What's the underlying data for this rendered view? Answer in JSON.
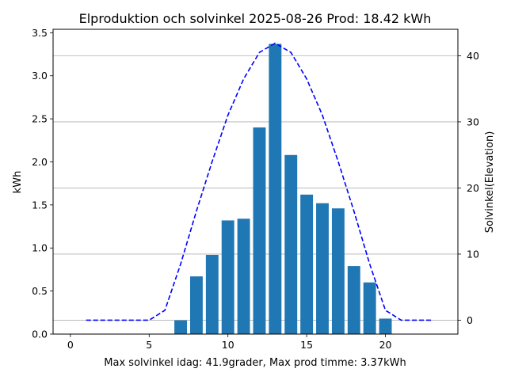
{
  "chart_data": {
    "type": "bar",
    "title": "Elproduktion och solvinkel 2025-08-26 Prod: 18.42 kWh",
    "xlabel": "Max solvinkel idag: 41.9grader, Max prod timme: 3.37kWh",
    "ylabel": "kWh",
    "y2label": "Solvinkel(Elevation)",
    "xlim": [
      -1.1,
      24.6
    ],
    "ylim": [
      0,
      3.54
    ],
    "y2lim": [
      -2.1,
      44.0
    ],
    "xticks": [
      "0",
      "5",
      "10",
      "15",
      "20"
    ],
    "yticks": [
      "0.0",
      "0.5",
      "1.0",
      "1.5",
      "2.0",
      "2.5",
      "3.0",
      "3.5"
    ],
    "y2ticks": [
      "0",
      "10",
      "20",
      "30",
      "40"
    ],
    "grid": "horizontal lines on secondary axis",
    "colors": {
      "bars": "#1f77b4",
      "elevation": "#0000ff",
      "y2label": "#0000ff"
    },
    "series": [
      {
        "type": "bar",
        "axis": "left",
        "x": [
          7,
          8,
          9,
          10,
          11,
          12,
          13,
          14,
          15,
          16,
          17,
          18,
          19,
          20
        ],
        "values": [
          0.16,
          0.67,
          0.92,
          1.32,
          1.34,
          2.4,
          3.37,
          2.08,
          1.62,
          1.52,
          1.46,
          0.79,
          0.6,
          0.18
        ]
      },
      {
        "type": "line",
        "axis": "right",
        "style": "dashed",
        "x": [
          1,
          2,
          3,
          4,
          5,
          6,
          7,
          8,
          9,
          10,
          11,
          12,
          13,
          14,
          15,
          16,
          17,
          18,
          19,
          20,
          21,
          22,
          23
        ],
        "values": [
          0,
          0,
          0,
          0,
          0,
          1.5,
          8.5,
          16.5,
          24.0,
          31.0,
          36.5,
          40.5,
          41.9,
          40.5,
          36.5,
          31.0,
          24.0,
          16.5,
          8.5,
          1.5,
          0,
          0,
          0
        ]
      }
    ]
  }
}
